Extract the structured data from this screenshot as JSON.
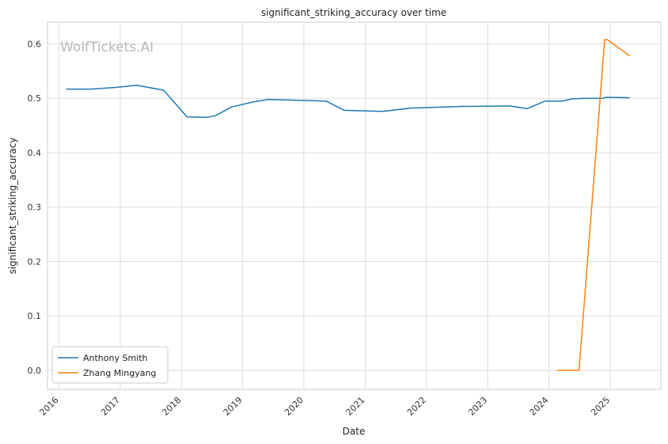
{
  "chart_data": {
    "type": "line",
    "title": "significant_striking_accuracy over time",
    "xlabel": "Date",
    "ylabel": "significant_striking_accuracy",
    "watermark": "WolfTickets.AI",
    "x_ticks": [
      "2016",
      "2017",
      "2018",
      "2019",
      "2020",
      "2021",
      "2022",
      "2023",
      "2024",
      "2025"
    ],
    "y_ticks": [
      "0.0",
      "0.1",
      "0.2",
      "0.3",
      "0.4",
      "0.5",
      "0.6"
    ],
    "xlim": [
      "2015-10-25",
      "2025-10-30"
    ],
    "ylim": [
      -0.035,
      0.64
    ],
    "grid": true,
    "legend_position": "lower-left",
    "series": [
      {
        "name": "Anthony Smith",
        "color": "#1f77b4",
        "points": [
          [
            "2016-02-14",
            0.517
          ],
          [
            "2016-07-06",
            0.517
          ],
          [
            "2016-12-03",
            0.52
          ],
          [
            "2017-04-08",
            0.524
          ],
          [
            "2017-09-16",
            0.515
          ],
          [
            "2018-02-03",
            0.466
          ],
          [
            "2018-06-01",
            0.465
          ],
          [
            "2018-07-22",
            0.468
          ],
          [
            "2018-10-27",
            0.484
          ],
          [
            "2019-03-01",
            0.493
          ],
          [
            "2019-06-01",
            0.498
          ],
          [
            "2020-05-13",
            0.495
          ],
          [
            "2020-08-29",
            0.478
          ],
          [
            "2021-04-17",
            0.476
          ],
          [
            "2021-09-25",
            0.482
          ],
          [
            "2022-07-30",
            0.485
          ],
          [
            "2023-05-13",
            0.486
          ],
          [
            "2023-08-25",
            0.481
          ],
          [
            "2023-12-09",
            0.495
          ],
          [
            "2024-03-20",
            0.495
          ],
          [
            "2024-05-20",
            0.499
          ],
          [
            "2024-08-03",
            0.5
          ],
          [
            "2024-11-16",
            0.5
          ],
          [
            "2024-12-07",
            0.502
          ],
          [
            "2025-04-27",
            0.501
          ]
        ]
      },
      {
        "name": "Zhang Mingyang",
        "color": "#ff7f0e",
        "points": [
          [
            "2024-02-17",
            0.0
          ],
          [
            "2024-06-29",
            0.0
          ],
          [
            "2024-11-29",
            0.608
          ],
          [
            "2024-12-14",
            0.608
          ],
          [
            "2025-04-27",
            0.578
          ]
        ]
      }
    ]
  }
}
